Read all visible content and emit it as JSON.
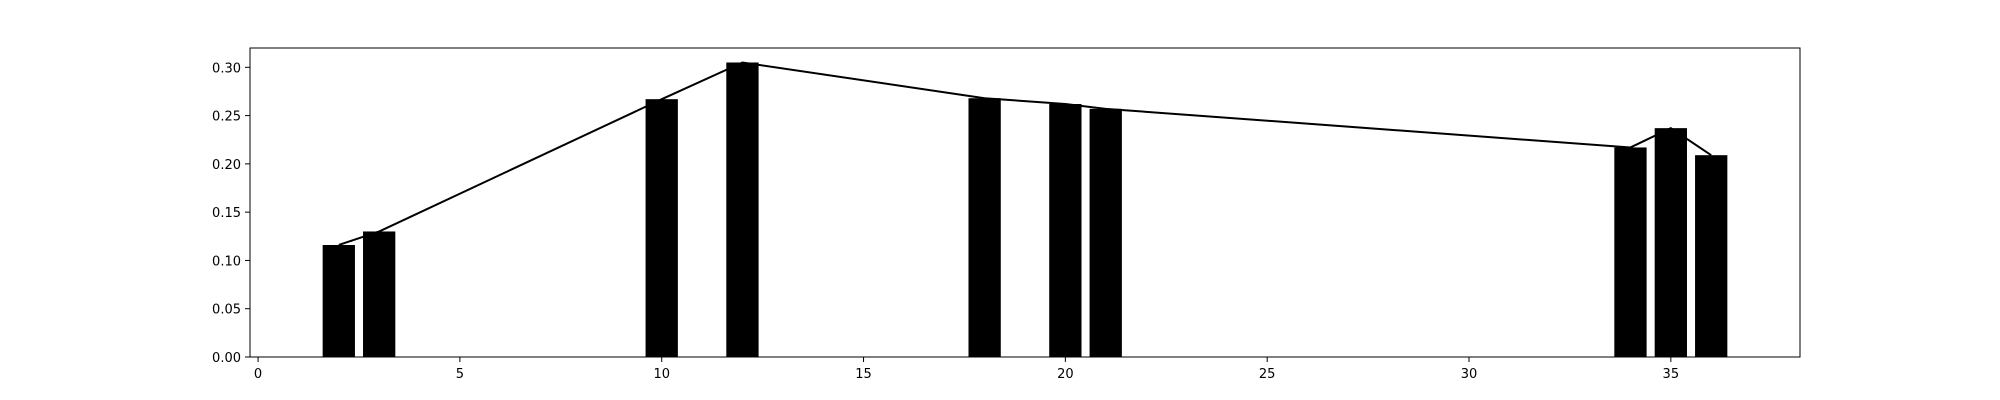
{
  "chart_data": {
    "type": "bar",
    "title": "",
    "xlabel": "",
    "ylabel": "",
    "x": [
      2,
      3,
      10,
      12,
      18,
      20,
      21,
      34,
      35,
      36
    ],
    "values": [
      0.116,
      0.13,
      0.267,
      0.305,
      0.268,
      0.262,
      0.257,
      0.217,
      0.237,
      0.209
    ],
    "line_overlay": true,
    "xlim": [
      -0.2,
      38.2
    ],
    "ylim": [
      0,
      0.32
    ],
    "xticks": [
      0,
      5,
      10,
      15,
      20,
      25,
      30,
      35
    ],
    "xtick_labels": [
      "0",
      "5",
      "10",
      "15",
      "20",
      "25",
      "30",
      "35"
    ],
    "yticks": [
      0,
      0.05,
      0.1,
      0.15,
      0.2,
      0.25,
      0.3
    ],
    "ytick_labels": [
      "0.00",
      "0.05",
      "0.10",
      "0.15",
      "0.20",
      "0.25",
      "0.30"
    ],
    "bar_width": 0.8,
    "grid": false,
    "colors": {
      "bar": "#000000",
      "line": "#000000",
      "axes": "#000000",
      "background": "#ffffff"
    }
  }
}
